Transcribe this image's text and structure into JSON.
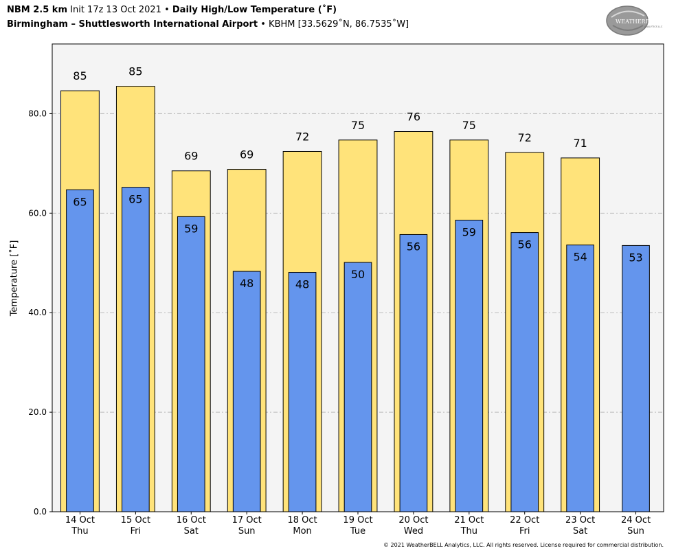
{
  "header": {
    "model": "NBM 2.5 km",
    "init": "Init 17z 13 Oct 2021",
    "sep": "•",
    "product": "Daily High/Low Temperature (˚F)",
    "location": "Birmingham – Shuttlesworth International Airport",
    "station": "KBHM [33.5629˚N, 86.7535˚W]"
  },
  "logo": {
    "text_upper": "WEATHERBELL",
    "text_lower": "ANALYTICS LLC",
    "colors": {
      "ring": "#8a8a8a",
      "text": "#ffffff"
    }
  },
  "footer": {
    "copyright": "© 2021 WeatherBELL Analytics, LLC. All rights reserved. License required for commercial distribution."
  },
  "chart_data": {
    "type": "bar",
    "title": "Daily High/Low Temperature (˚F)",
    "xlabel": "",
    "ylabel": "Temperature [˚F]",
    "ylim": [
      0,
      94
    ],
    "yticks": [
      0,
      20,
      40,
      60,
      80
    ],
    "ytick_labels": [
      "0.0",
      "20.0",
      "40.0",
      "60.0",
      "80.0"
    ],
    "grid": true,
    "categories": [
      [
        "14 Oct",
        "Thu"
      ],
      [
        "15 Oct",
        "Fri"
      ],
      [
        "16 Oct",
        "Sat"
      ],
      [
        "17 Oct",
        "Sun"
      ],
      [
        "18 Oct",
        "Mon"
      ],
      [
        "19 Oct",
        "Tue"
      ],
      [
        "20 Oct",
        "Wed"
      ],
      [
        "21 Oct",
        "Thu"
      ],
      [
        "22 Oct",
        "Fri"
      ],
      [
        "23 Oct",
        "Sat"
      ],
      [
        "24 Oct",
        "Sun"
      ]
    ],
    "series": [
      {
        "color": "#ffe37a",
        "values": [
          84.6,
          85.5,
          68.5,
          68.8,
          72.4,
          74.7,
          76.4,
          74.7,
          72.2,
          71.1,
          null
        ],
        "labels": [
          "85",
          "85",
          "69",
          "69",
          "72",
          "75",
          "76",
          "75",
          "72",
          "71",
          ""
        ]
      },
      {
        "color": "#6495ed",
        "values": [
          64.7,
          65.2,
          59.3,
          48.3,
          48.1,
          50.1,
          55.7,
          58.6,
          56.1,
          53.6,
          53.5
        ],
        "labels": [
          "65",
          "65",
          "59",
          "48",
          "48",
          "50",
          "56",
          "59",
          "56",
          "54",
          "53"
        ]
      }
    ],
    "colors": {
      "plot_background": "#f4f4f4",
      "grid": "#bbbbbb",
      "bar_edge": "#000000"
    }
  }
}
